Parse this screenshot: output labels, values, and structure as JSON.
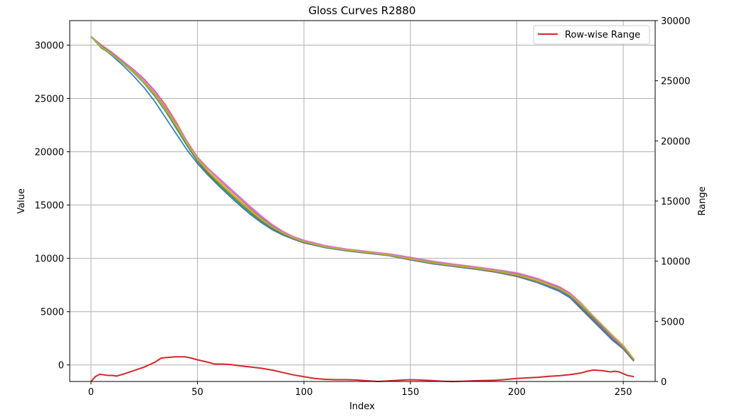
{
  "chart_data": {
    "type": "line",
    "title": "Gloss Curves R2880",
    "xlabel": "Index",
    "ylabel": "Value",
    "y2label": "Range",
    "xlim": [
      -10,
      265
    ],
    "ylim": [
      -1550,
      32300
    ],
    "y2lim": [
      0,
      30000
    ],
    "xticks": [
      0,
      50,
      100,
      150,
      200,
      250
    ],
    "yticks": [
      0,
      5000,
      10000,
      15000,
      20000,
      25000,
      30000
    ],
    "y2ticks": [
      0,
      5000,
      10000,
      15000,
      20000,
      25000,
      30000
    ],
    "grid": true,
    "legend": {
      "position": "top-right",
      "entries": [
        "Row-wise Range"
      ]
    },
    "curves": {
      "x": [
        0,
        5,
        10,
        15,
        20,
        25,
        30,
        35,
        40,
        45,
        50,
        55,
        60,
        65,
        70,
        75,
        80,
        85,
        90,
        95,
        100,
        110,
        120,
        130,
        140,
        150,
        160,
        170,
        180,
        190,
        200,
        210,
        220,
        225,
        230,
        235,
        240,
        245,
        250,
        255
      ],
      "series": [
        {
          "color": "#1f77b4",
          "values": [
            30800,
            29800,
            29000,
            28100,
            27100,
            26000,
            24700,
            23200,
            21700,
            20200,
            18900,
            17800,
            16800,
            15850,
            14950,
            14100,
            13350,
            12700,
            12200,
            11800,
            11450,
            11000,
            10700,
            10480,
            10250,
            9850,
            9500,
            9250,
            9000,
            8700,
            8300,
            7700,
            6900,
            6300,
            5300,
            4300,
            3300,
            2300,
            1500,
            350
          ]
        },
        {
          "color": "#ff7f0e",
          "values": [
            30800,
            30000,
            29300,
            28500,
            27700,
            26800,
            25700,
            24400,
            22800,
            21000,
            19400,
            18200,
            17250,
            16300,
            15400,
            14550,
            13750,
            13050,
            12450,
            11950,
            11600,
            11100,
            10800,
            10600,
            10380,
            10050,
            9700,
            9430,
            9200,
            8900,
            8550,
            8000,
            7250,
            6650,
            5750,
            4650,
            3600,
            2550,
            1650,
            450
          ]
        },
        {
          "color": "#2ca02c",
          "values": [
            30800,
            29700,
            29100,
            28300,
            27400,
            26400,
            25200,
            23800,
            22200,
            20600,
            19100,
            17900,
            16900,
            16000,
            15100,
            14250,
            13450,
            12800,
            12250,
            11850,
            11500,
            11050,
            10750,
            10530,
            10300,
            9930,
            9600,
            9350,
            9100,
            8800,
            8430,
            7850,
            7100,
            6500,
            5600,
            4600,
            3650,
            2700,
            1800,
            500
          ]
        },
        {
          "color": "#d62728",
          "values": [
            30800,
            29900,
            29200,
            28400,
            27500,
            26500,
            25400,
            24000,
            22500,
            20800,
            19200,
            18000,
            17050,
            16150,
            15250,
            14400,
            13600,
            12900,
            12350,
            11900,
            11550,
            11050,
            10750,
            10500,
            10280,
            9900,
            9560,
            9300,
            9050,
            8750,
            8380,
            7800,
            7050,
            6450,
            5450,
            4450,
            3450,
            2450,
            1550,
            400
          ]
        },
        {
          "color": "#9467bd",
          "values": [
            30800,
            30000,
            29300,
            28500,
            27700,
            26800,
            25700,
            24300,
            22700,
            21000,
            19500,
            18400,
            17450,
            16500,
            15600,
            14700,
            13850,
            13100,
            12500,
            12000,
            11650,
            11150,
            10850,
            10620,
            10400,
            10080,
            9730,
            9450,
            9200,
            8930,
            8600,
            8050,
            7300,
            6700,
            5800,
            4700,
            3650,
            2600,
            1700,
            500
          ]
        },
        {
          "color": "#8c564b",
          "values": [
            30800,
            29900,
            29150,
            28350,
            27450,
            26450,
            25300,
            23900,
            22350,
            20700,
            19200,
            18050,
            17050,
            16100,
            15200,
            14350,
            13550,
            12850,
            12300,
            11850,
            11500,
            11050,
            10750,
            10500,
            10270,
            9880,
            9540,
            9290,
            9040,
            8740,
            8350,
            7780,
            7030,
            6420,
            5400,
            4400,
            3420,
            2450,
            1550,
            400
          ]
        },
        {
          "color": "#e377c2",
          "values": [
            30800,
            30000,
            29300,
            28500,
            27650,
            26700,
            25600,
            24200,
            22650,
            21000,
            19500,
            18450,
            17550,
            16650,
            15750,
            14850,
            14000,
            13200,
            12550,
            12050,
            11700,
            11200,
            10880,
            10650,
            10430,
            10100,
            9750,
            9470,
            9230,
            8950,
            8650,
            8100,
            7350,
            6750,
            5850,
            4800,
            3750,
            2700,
            1750,
            550
          ]
        },
        {
          "color": "#7f7f7f",
          "values": [
            30800,
            29850,
            29150,
            28350,
            27450,
            26450,
            25300,
            23950,
            22400,
            20750,
            19250,
            18100,
            17100,
            16150,
            15250,
            14400,
            13600,
            12900,
            12350,
            11900,
            11550,
            11050,
            10750,
            10520,
            10290,
            9900,
            9560,
            9300,
            9060,
            8760,
            8380,
            7800,
            7050,
            6450,
            5500,
            4500,
            3500,
            2500,
            1600,
            420
          ]
        },
        {
          "color": "#bcbd22",
          "values": [
            30800,
            29800,
            29100,
            28300,
            27450,
            26450,
            25350,
            23950,
            22450,
            20800,
            19300,
            18150,
            17150,
            16200,
            15300,
            14450,
            13650,
            12950,
            12380,
            11920,
            11560,
            11080,
            10780,
            10550,
            10320,
            9950,
            9600,
            9340,
            9100,
            8820,
            8450,
            7880,
            7150,
            6580,
            5700,
            4750,
            3800,
            2800,
            1850,
            550
          ]
        }
      ]
    },
    "range_series": {
      "name": "Row-wise Range",
      "color": "#d62728",
      "axis": "right",
      "x": [
        0,
        2,
        4,
        6,
        8,
        10,
        12,
        15,
        20,
        25,
        30,
        33,
        36,
        40,
        44,
        47,
        50,
        55,
        58,
        62,
        66,
        70,
        75,
        80,
        85,
        90,
        95,
        100,
        105,
        110,
        115,
        120,
        125,
        130,
        135,
        140,
        145,
        150,
        155,
        160,
        165,
        170,
        175,
        180,
        185,
        190,
        195,
        200,
        205,
        210,
        215,
        220,
        225,
        230,
        233,
        236,
        240,
        242,
        244,
        246,
        248,
        250,
        252,
        255
      ],
      "values": [
        0,
        400,
        600,
        550,
        500,
        500,
        450,
        600,
        900,
        1200,
        1600,
        1950,
        2000,
        2050,
        2050,
        1950,
        1800,
        1600,
        1450,
        1450,
        1400,
        1300,
        1200,
        1100,
        950,
        750,
        550,
        400,
        250,
        180,
        150,
        150,
        120,
        50,
        0,
        50,
        100,
        150,
        120,
        70,
        20,
        0,
        20,
        60,
        80,
        100,
        170,
        250,
        300,
        350,
        430,
        480,
        570,
        700,
        850,
        950,
        900,
        850,
        800,
        850,
        800,
        650,
        500,
        400
      ]
    }
  }
}
